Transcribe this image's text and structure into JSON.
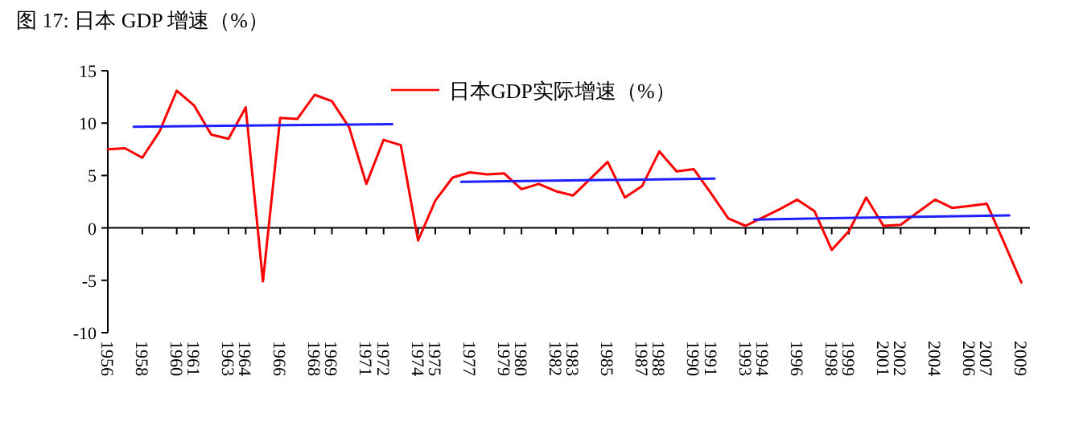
{
  "chart_data": {
    "type": "line",
    "title": "图 17: 日本 GDP 增速（%）",
    "x": [
      1956,
      1957,
      1958,
      1959,
      1960,
      1961,
      1962,
      1963,
      1964,
      1965,
      1966,
      1967,
      1968,
      1969,
      1970,
      1971,
      1972,
      1973,
      1974,
      1975,
      1976,
      1977,
      1978,
      1979,
      1980,
      1981,
      1982,
      1983,
      1984,
      1985,
      1986,
      1987,
      1988,
      1989,
      1990,
      1991,
      1992,
      1993,
      1994,
      1995,
      1996,
      1997,
      1998,
      1999,
      2000,
      2001,
      2002,
      2003,
      2004,
      2005,
      2006,
      2007,
      2008,
      2009
    ],
    "xlim": [
      1956,
      2009.5
    ],
    "xticks": [
      1956,
      1958,
      1960,
      1961,
      1963,
      1964,
      1966,
      1968,
      1969,
      1971,
      1972,
      1974,
      1975,
      1977,
      1979,
      1980,
      1982,
      1983,
      1985,
      1987,
      1988,
      1990,
      1991,
      1993,
      1994,
      1996,
      1998,
      1999,
      2001,
      2002,
      2004,
      2006,
      2007,
      2009
    ],
    "ylim": [
      -10,
      15
    ],
    "yticks": [
      -10,
      -5,
      0,
      5,
      10,
      15
    ],
    "legend": "top",
    "series": [
      {
        "name": "日本GDP实际增速（%）",
        "color": "#ff0000",
        "values": [
          7.5,
          7.6,
          6.7,
          9.2,
          13.1,
          11.7,
          8.9,
          8.5,
          11.5,
          -5.1,
          10.5,
          10.4,
          12.7,
          12.1,
          9.6,
          4.2,
          8.4,
          7.9,
          -1.2,
          2.6,
          4.8,
          5.3,
          5.1,
          5.2,
          3.7,
          4.2,
          3.5,
          3.1,
          4.7,
          6.3,
          2.9,
          4.0,
          7.3,
          5.4,
          5.6,
          3.3,
          0.9,
          0.2,
          1.0,
          1.8,
          2.7,
          1.6,
          -2.1,
          -0.3,
          2.9,
          0.2,
          0.3,
          1.5,
          2.7,
          1.9,
          2.1,
          2.3,
          -1.4,
          -5.2
        ]
      },
      {
        "type": "line",
        "color": "#2020ff",
        "x": [
          1957.5,
          1972.5
        ],
        "values": [
          9.65,
          9.9
        ]
      },
      {
        "type": "line",
        "color": "#2020ff",
        "x": [
          1976.5,
          1991.2
        ],
        "values": [
          4.4,
          4.7
        ]
      },
      {
        "type": "line",
        "color": "#2020ff",
        "x": [
          1993.5,
          2008.3
        ],
        "values": [
          0.8,
          1.2
        ]
      }
    ]
  }
}
